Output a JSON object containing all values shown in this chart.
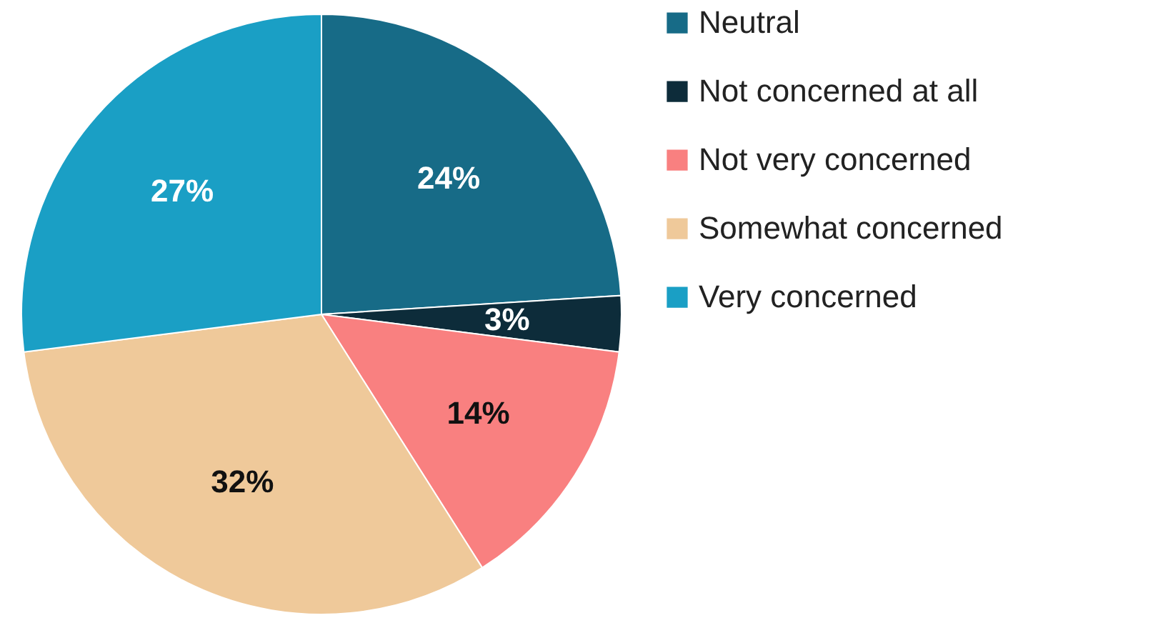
{
  "chart_data": {
    "type": "pie",
    "categories": [
      "Neutral",
      "Not concerned at all",
      "Not very concerned",
      "Somewhat concerned",
      "Very concerned"
    ],
    "values": [
      24,
      3,
      14,
      32,
      27
    ],
    "value_labels": [
      "24%",
      "3%",
      "14%",
      "32%",
      "27%"
    ],
    "colors": [
      "#176b87",
      "#0d2c3a",
      "#f98080",
      "#efc99a",
      "#1a9fc5"
    ],
    "legend": "right"
  }
}
